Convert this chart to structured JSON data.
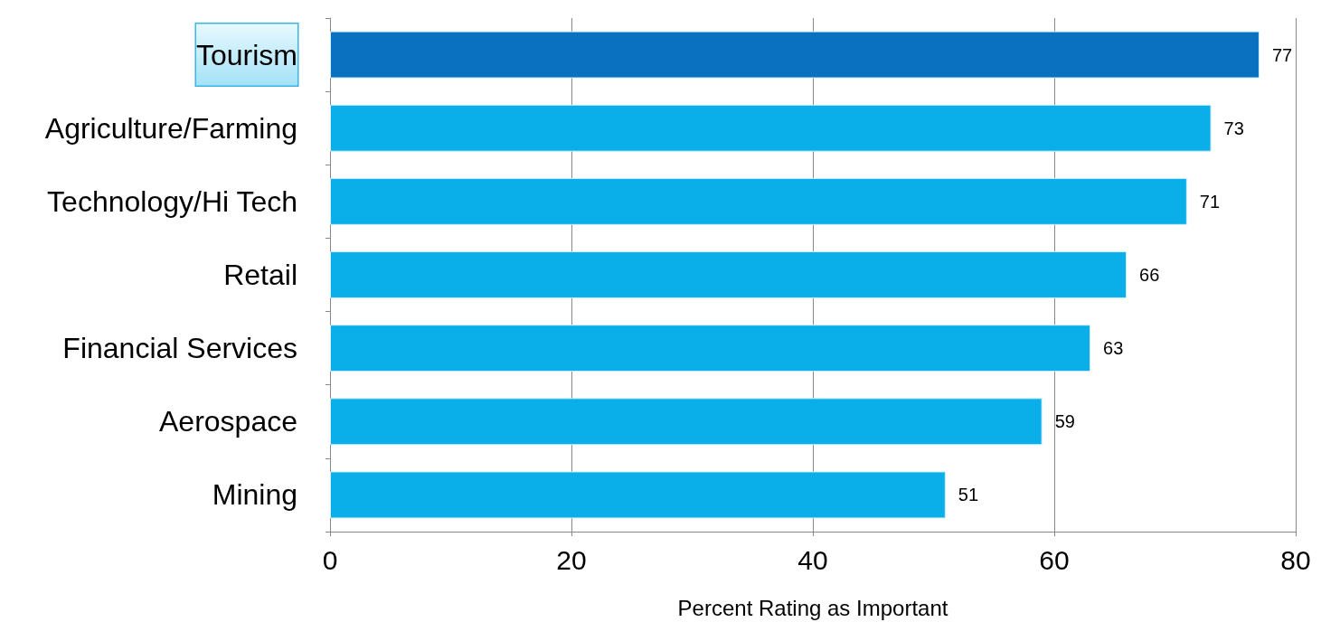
{
  "chart_data": {
    "type": "bar",
    "orientation": "horizontal",
    "xlabel": "Percent Rating as Important",
    "categories": [
      "Tourism",
      "Agriculture/Farming",
      "Technology/Hi Tech",
      "Retail",
      "Financial Services",
      "Aerospace",
      "Mining"
    ],
    "values": [
      77,
      73,
      71,
      66,
      63,
      59,
      51
    ],
    "colors": [
      "#0a70c0",
      "#0aaee8",
      "#0aaee8",
      "#0aaee8",
      "#0aaee8",
      "#0aaee8",
      "#0aaee8"
    ],
    "xlim": [
      0,
      80
    ],
    "xticks": [
      0,
      20,
      40,
      60,
      80
    ],
    "grid": "x",
    "data_labels": true
  }
}
